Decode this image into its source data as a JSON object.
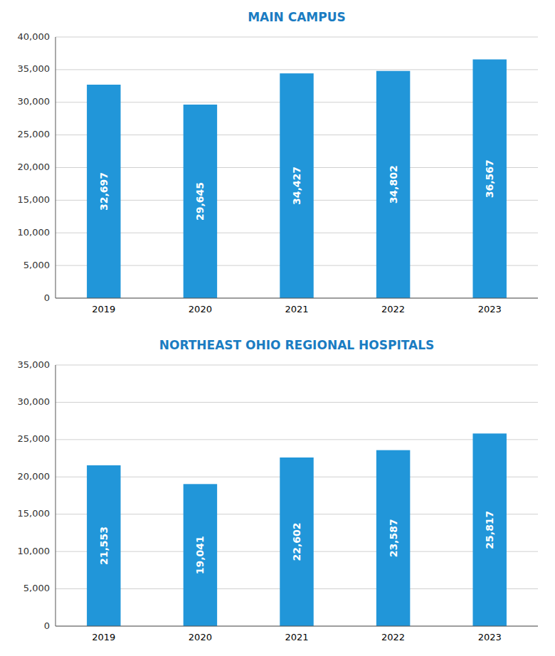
{
  "chart_data": [
    {
      "type": "bar",
      "title": "MAIN CAMPUS",
      "categories": [
        "2019",
        "2020",
        "2021",
        "2022",
        "2023"
      ],
      "values": [
        32697,
        29645,
        34427,
        34802,
        36567
      ],
      "value_labels": [
        "32,697",
        "29,645",
        "34,427",
        "34,802",
        "36,567"
      ],
      "color": "#2196D9",
      "ylim": [
        0,
        40000
      ],
      "yticks": [
        0,
        {
          "value": 5000,
          "label": "5,000"
        },
        {
          "value": 10000,
          "label": "10,000"
        },
        {
          "value": 15000,
          "label": "15,000"
        },
        {
          "value": 20000,
          "label": "20,000"
        },
        {
          "value": 25000,
          "label": "25,000"
        },
        {
          "value": 30000,
          "label": "30,000"
        },
        {
          "value": 35000,
          "label": "35,000"
        },
        {
          "value": 40000,
          "label": "40,000"
        }
      ],
      "grid": true,
      "data_labels": true
    },
    {
      "type": "bar",
      "title": "NORTHEAST OHIO REGIONAL HOSPITALS",
      "categories": [
        "2019",
        "2020",
        "2021",
        "2022",
        "2023"
      ],
      "values": [
        21553,
        19041,
        22602,
        23587,
        25817
      ],
      "value_labels": [
        "21,553",
        "19,041",
        "22,602",
        "23,587",
        "25,817"
      ],
      "color": "#2196D9",
      "ylim": [
        0,
        35000
      ],
      "yticks": [
        0,
        {
          "value": 5000,
          "label": "5,000"
        },
        {
          "value": 10000,
          "label": "10,000"
        },
        {
          "value": 15000,
          "label": "15,000"
        },
        {
          "value": 20000,
          "label": "20,000"
        },
        {
          "value": 25000,
          "label": "25,000"
        },
        {
          "value": 30000,
          "label": "30,000"
        },
        {
          "value": 35000,
          "label": "35,000"
        }
      ],
      "grid": true,
      "data_labels": true
    }
  ]
}
